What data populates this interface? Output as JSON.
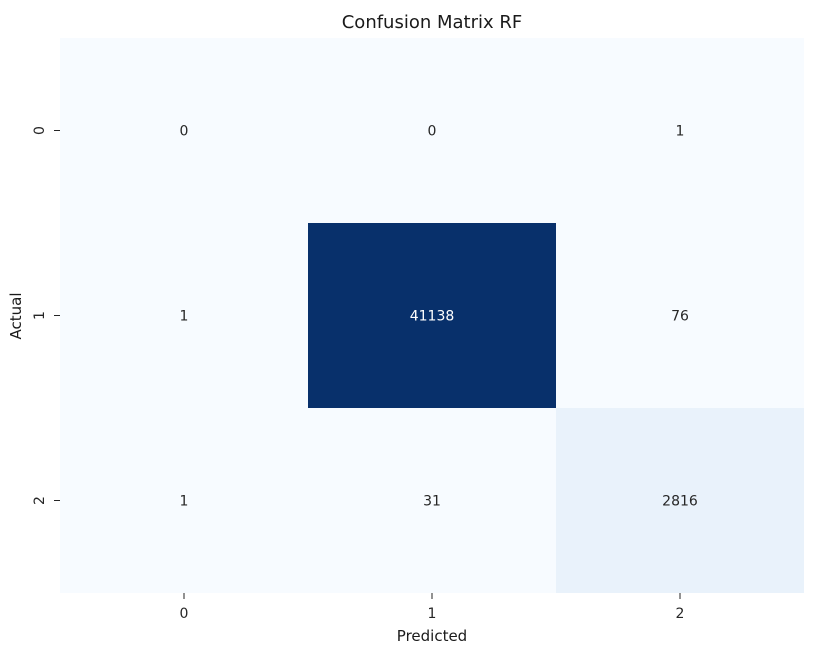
{
  "chart_data": {
    "type": "heatmap",
    "title": "Confusion Matrix RF",
    "xlabel": "Predicted",
    "ylabel": "Actual",
    "x_categories": [
      "0",
      "1",
      "2"
    ],
    "y_categories": [
      "0",
      "1",
      "2"
    ],
    "values": [
      [
        0,
        0,
        1
      ],
      [
        1,
        41138,
        76
      ],
      [
        1,
        31,
        2816
      ]
    ],
    "colormap": "Blues",
    "colorbar": false,
    "low_color": "#f7fbff",
    "high_color": "#08306b"
  }
}
